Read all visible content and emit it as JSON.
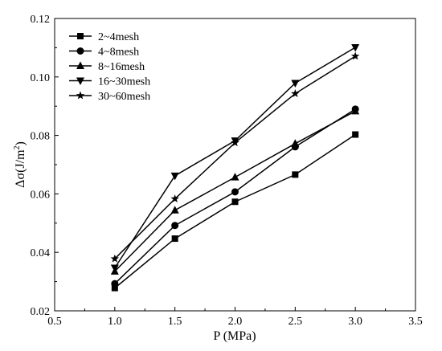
{
  "chart_data": {
    "type": "line",
    "xlabel": "P (MPa)",
    "ylabel": "Δσ(J/m²)",
    "ylabel_main": "Δσ(J/m",
    "ylabel_sup": "2",
    "ylabel_end": ")",
    "xlim": [
      0.5,
      3.5
    ],
    "ylim": [
      0.02,
      0.12
    ],
    "xticks": [
      "0.5",
      "1.0",
      "1.5",
      "2.0",
      "2.5",
      "3.0",
      "3.5"
    ],
    "yticks": [
      "0.02",
      "0.04",
      "0.06",
      "0.08",
      "0.10",
      "0.12"
    ],
    "grid": false,
    "legend_position": "top-left",
    "x": [
      1.0,
      1.5,
      2.0,
      2.5,
      3.0
    ],
    "series": [
      {
        "name": "2~4mesh",
        "marker": "square",
        "values": [
          0.0278,
          0.0447,
          0.0573,
          0.0666,
          0.0803
        ]
      },
      {
        "name": "4~8mesh",
        "marker": "circle",
        "values": [
          0.0293,
          0.0492,
          0.0607,
          0.0761,
          0.089
        ]
      },
      {
        "name": "8~16mesh",
        "marker": "triangle-up",
        "values": [
          0.0335,
          0.0544,
          0.0657,
          0.0772,
          0.0883
        ]
      },
      {
        "name": "16~30mesh",
        "marker": "triangle-down",
        "values": [
          0.0347,
          0.0662,
          0.0782,
          0.0979,
          0.1101
        ]
      },
      {
        "name": "30~60mesh",
        "marker": "star",
        "values": [
          0.0378,
          0.0583,
          0.0775,
          0.0943,
          0.1071
        ]
      }
    ]
  }
}
